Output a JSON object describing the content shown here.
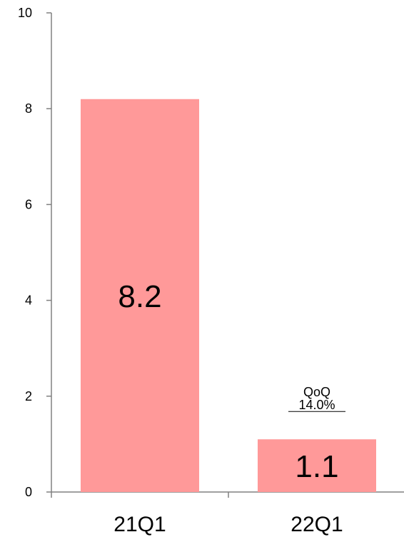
{
  "chart_data": {
    "type": "bar",
    "categories": [
      "21Q1",
      "22Q1"
    ],
    "values": [
      8.2,
      1.1
    ],
    "data_labels": [
      "8.2",
      "1.1"
    ],
    "ylim": [
      0,
      10
    ],
    "yticks": [
      0,
      2,
      4,
      6,
      8,
      10
    ],
    "ytick_labels": [
      "0",
      "2",
      "4",
      "6",
      "8",
      "10"
    ],
    "grid": false,
    "legend": "none",
    "bar_color": "#FF9999",
    "axis_color": "#808080",
    "annotation": {
      "category": "22Q1",
      "line1": "QoQ",
      "line2": "14.0%",
      "underline_line2": true
    }
  }
}
